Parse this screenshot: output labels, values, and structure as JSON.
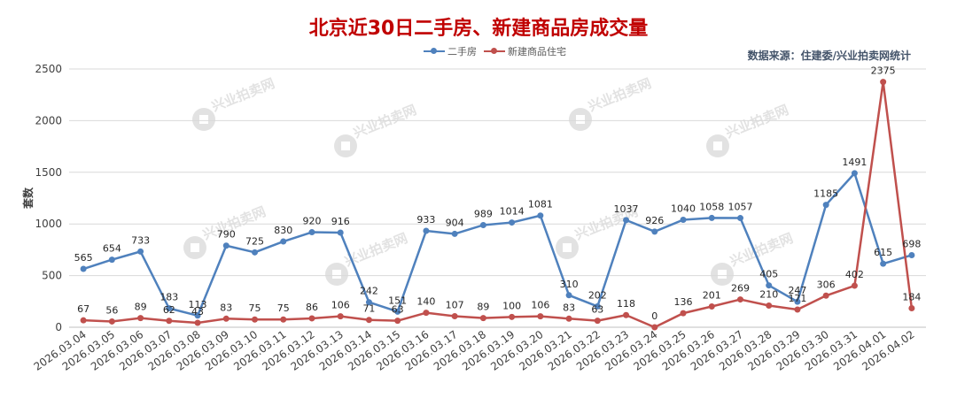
{
  "title": "北京近30日二手房、新建商品房成交量",
  "source": "数据来源：住建委/兴业拍卖网统计",
  "watermark": "兴业拍卖网",
  "colors": {
    "series1": "#4f81bd",
    "series2": "#c0504d",
    "title": "#c00000",
    "grid": "#d9d9d9"
  },
  "chart_data": {
    "type": "line",
    "title": "北京近30日二手房、新建商品房成交量",
    "xlabel": "",
    "ylabel": "套数",
    "ylim": [
      0,
      2500
    ],
    "yticks": [
      0,
      500,
      1000,
      1500,
      2000,
      2500
    ],
    "grid": true,
    "legend": "top-center",
    "categories": [
      "2026.03.04",
      "2026.03.05",
      "2026.03.06",
      "2026.03.07",
      "2026.03.08",
      "2026.03.09",
      "2026.03.10",
      "2026.03.11",
      "2026.03.12",
      "2026.03.13",
      "2026.03.14",
      "2026.03.15",
      "2026.03.16",
      "2026.03.17",
      "2026.03.18",
      "2026.03.19",
      "2026.03.20",
      "2026.03.21",
      "2026.03.22",
      "2026.03.23",
      "2026.03.24",
      "2026.03.25",
      "2026.03.26",
      "2026.03.27",
      "2026.03.28",
      "2026.03.29",
      "2026.03.30",
      "2026.03.31",
      "2026.04.01",
      "2026.04.02"
    ],
    "series": [
      {
        "name": "二手房",
        "color": "#4f81bd",
        "values": [
          565,
          654,
          733,
          183,
          113,
          790,
          725,
          830,
          920,
          916,
          242,
          151,
          933,
          904,
          989,
          1014,
          1081,
          310,
          202,
          1037,
          926,
          1040,
          1058,
          1057,
          405,
          247,
          1185,
          1491,
          615,
          698
        ]
      },
      {
        "name": "新建商品住宅",
        "color": "#c0504d",
        "values": [
          67,
          56,
          89,
          62,
          43,
          83,
          75,
          75,
          86,
          106,
          71,
          63,
          140,
          107,
          89,
          100,
          106,
          83,
          63,
          118,
          0,
          136,
          201,
          269,
          210,
          171,
          306,
          402,
          2375,
          184
        ]
      }
    ]
  }
}
